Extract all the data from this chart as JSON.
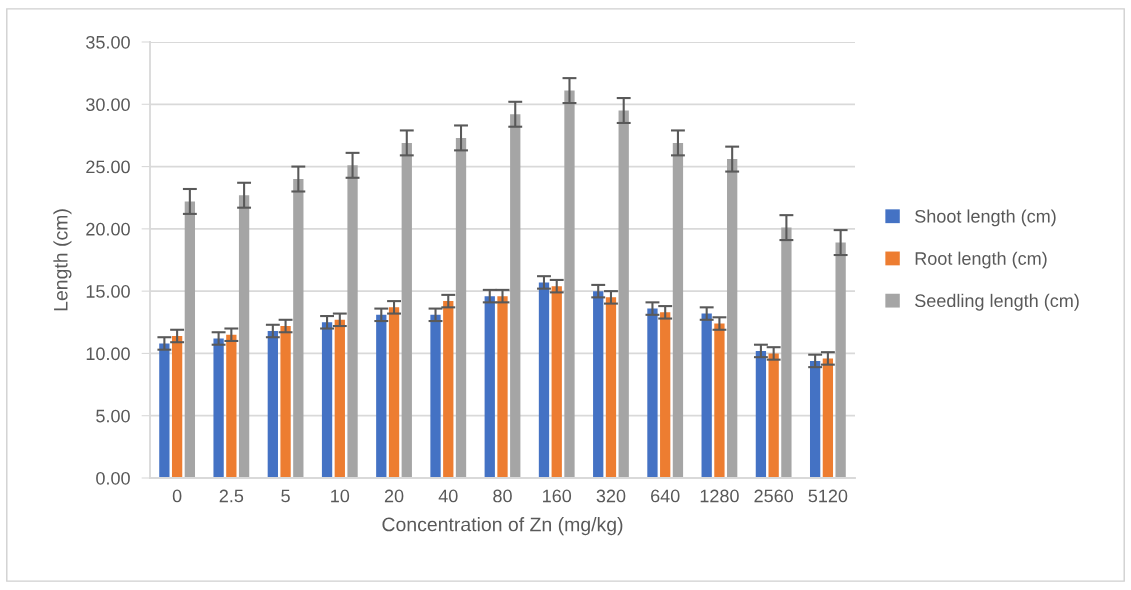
{
  "chart_data": {
    "type": "bar",
    "xlabel": "Concentration of Zn (mg/kg)",
    "ylabel": "Length (cm)",
    "categories": [
      "0",
      "2.5",
      "5",
      "10",
      "20",
      "40",
      "80",
      "160",
      "320",
      "640",
      "1280",
      "2560",
      "5120"
    ],
    "series": [
      {
        "name": "Shoot length (cm)",
        "color": "#4472c4",
        "values": [
          10.8,
          11.2,
          11.8,
          12.5,
          13.1,
          13.1,
          14.6,
          15.7,
          15.0,
          13.6,
          13.2,
          10.2,
          9.4
        ],
        "errors": [
          0.5,
          0.5,
          0.5,
          0.5,
          0.5,
          0.5,
          0.5,
          0.5,
          0.5,
          0.5,
          0.5,
          0.5,
          0.5
        ]
      },
      {
        "name": "Root length (cm)",
        "color": "#ed7d31",
        "values": [
          11.4,
          11.5,
          12.2,
          12.7,
          13.7,
          14.2,
          14.6,
          15.4,
          14.5,
          13.3,
          12.4,
          10.0,
          9.6
        ],
        "errors": [
          0.5,
          0.5,
          0.5,
          0.5,
          0.5,
          0.5,
          0.5,
          0.5,
          0.5,
          0.5,
          0.5,
          0.5,
          0.5
        ]
      },
      {
        "name": "Seedling length (cm)",
        "color": "#a5a5a5",
        "values": [
          22.2,
          22.7,
          24.0,
          25.1,
          26.9,
          27.3,
          29.2,
          31.1,
          29.5,
          26.9,
          25.6,
          20.1,
          18.9
        ],
        "errors": [
          1.0,
          1.0,
          1.0,
          1.0,
          1.0,
          1.0,
          1.0,
          1.0,
          1.0,
          1.0,
          1.0,
          1.0,
          1.0
        ]
      }
    ],
    "ylim": [
      0,
      35
    ],
    "yticks": [
      {
        "value": 0,
        "label": "0.00"
      },
      {
        "value": 5,
        "label": "5.00"
      },
      {
        "value": 10,
        "label": "10.00"
      },
      {
        "value": 15,
        "label": "15.00"
      },
      {
        "value": 20,
        "label": "20.00"
      },
      {
        "value": 25,
        "label": "25.00"
      },
      {
        "value": 30,
        "label": "30.00"
      },
      {
        "value": 35,
        "label": "35.00"
      }
    ],
    "grid": "y",
    "legend": "right"
  }
}
